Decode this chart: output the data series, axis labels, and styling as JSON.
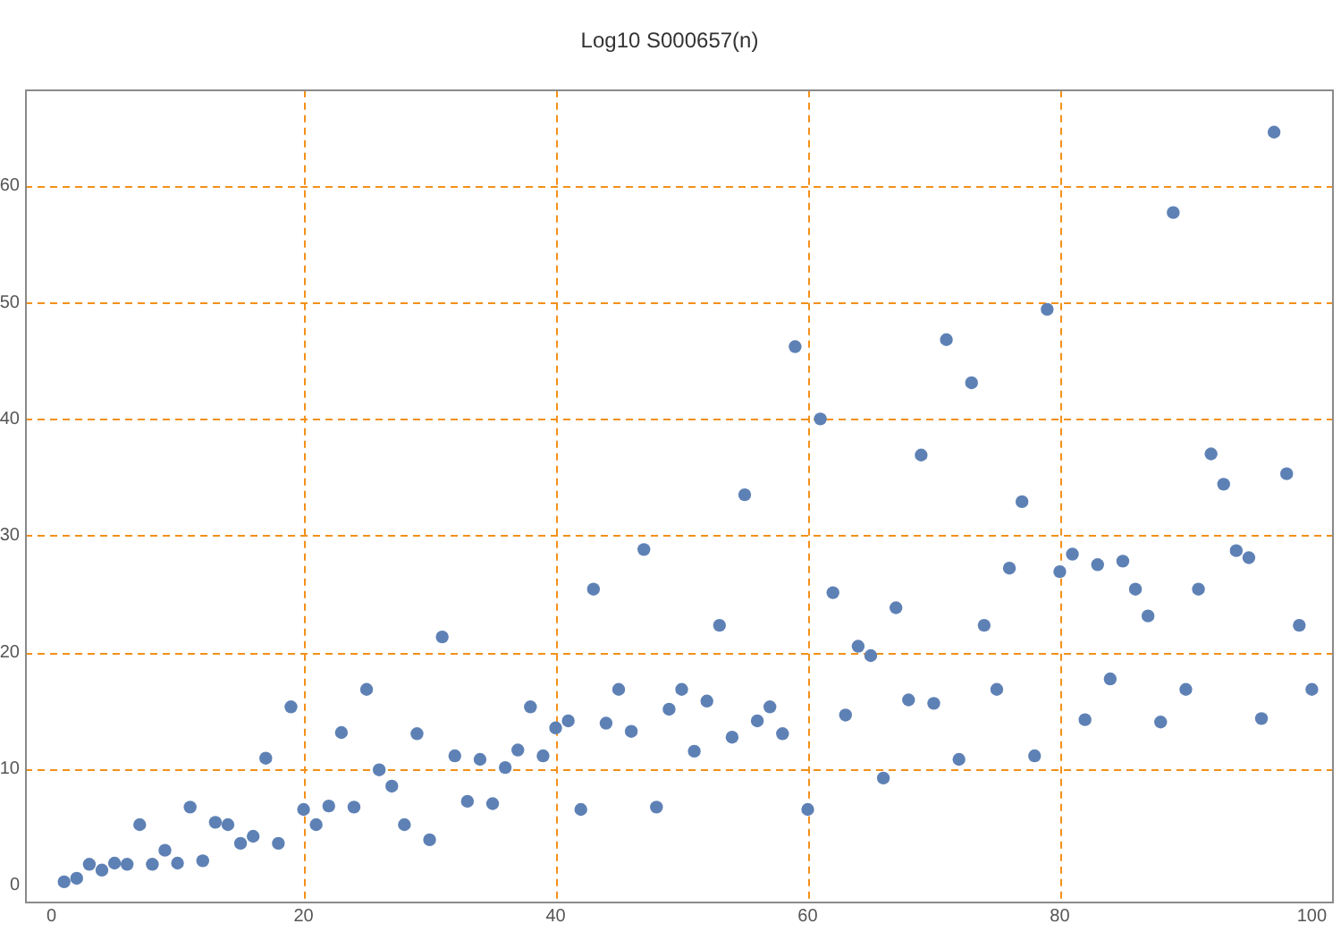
{
  "chart_data": {
    "type": "scatter",
    "title": "Log10 S000657(n)",
    "x": [
      1,
      2,
      3,
      4,
      5,
      6,
      7,
      8,
      9,
      10,
      11,
      12,
      13,
      14,
      15,
      16,
      17,
      18,
      19,
      20,
      21,
      22,
      23,
      24,
      25,
      26,
      27,
      28,
      29,
      30,
      31,
      32,
      33,
      34,
      35,
      36,
      37,
      38,
      39,
      40,
      41,
      42,
      43,
      44,
      45,
      46,
      47,
      48,
      49,
      50,
      51,
      52,
      53,
      54,
      55,
      56,
      57,
      58,
      59,
      60,
      61,
      62,
      63,
      64,
      65,
      66,
      67,
      68,
      69,
      70,
      71,
      72,
      73,
      74,
      75,
      76,
      77,
      78,
      79,
      80,
      81,
      82,
      83,
      84,
      85,
      86,
      87,
      88,
      89,
      90,
      91,
      92,
      93,
      94,
      95,
      96,
      97,
      98,
      99,
      100
    ],
    "values": [
      0.3,
      0.6,
      1.8,
      1.3,
      1.9,
      1.8,
      5.2,
      1.8,
      3.0,
      1.9,
      6.7,
      2.1,
      5.4,
      5.2,
      3.6,
      4.2,
      10.9,
      3.6,
      15.3,
      6.5,
      5.2,
      6.8,
      13.1,
      6.7,
      16.8,
      9.9,
      8.5,
      5.2,
      13.0,
      3.9,
      21.3,
      11.1,
      7.2,
      10.8,
      7.0,
      10.1,
      11.6,
      15.3,
      11.1,
      13.5,
      14.1,
      6.5,
      25.4,
      13.9,
      16.8,
      13.2,
      28.8,
      6.7,
      15.1,
      16.8,
      11.5,
      15.8,
      22.3,
      12.7,
      33.5,
      14.1,
      15.3,
      13.0,
      46.2,
      6.5,
      40.0,
      25.1,
      14.6,
      20.5,
      19.7,
      9.2,
      23.8,
      15.9,
      36.9,
      15.6,
      46.8,
      10.8,
      43.1,
      22.3,
      16.8,
      27.2,
      32.9,
      11.1,
      49.4,
      26.9,
      28.4,
      14.2,
      27.5,
      17.7,
      27.8,
      25.4,
      23.1,
      14.0,
      57.7,
      16.8,
      25.4,
      37.0,
      34.4,
      28.7,
      28.1,
      14.3,
      64.6,
      35.3,
      22.3,
      16.8
    ],
    "color": "#5e81b5",
    "marker": "circle",
    "xlim": [
      -2.1,
      101.8
    ],
    "ylim": [
      -1.4,
      68.2
    ],
    "xticks": [
      0,
      20,
      40,
      60,
      80,
      100
    ],
    "yticks": [
      0,
      10,
      20,
      30,
      40,
      50,
      60
    ],
    "ref_lines": [
      {
        "axis": "x",
        "value": 20,
        "color": "#f39019",
        "line_style": "dashed"
      },
      {
        "axis": "x",
        "value": 40,
        "color": "#f39019",
        "line_style": "dashed"
      },
      {
        "axis": "x",
        "value": 60,
        "color": "#f39019",
        "line_style": "dashed"
      },
      {
        "axis": "x",
        "value": 80,
        "color": "#f39019",
        "line_style": "dashed"
      },
      {
        "axis": "y",
        "value": 10,
        "color": "#f39019",
        "line_style": "dashed"
      },
      {
        "axis": "y",
        "value": 20,
        "color": "#f39019",
        "line_style": "dashed"
      },
      {
        "axis": "y",
        "value": 30,
        "color": "#f39019",
        "line_style": "dashed"
      },
      {
        "axis": "y",
        "value": 40,
        "color": "#f39019",
        "line_style": "dashed"
      },
      {
        "axis": "y",
        "value": 50,
        "color": "#f39019",
        "line_style": "dashed"
      },
      {
        "axis": "y",
        "value": 60,
        "color": "#f39019",
        "line_style": "dashed"
      }
    ]
  }
}
